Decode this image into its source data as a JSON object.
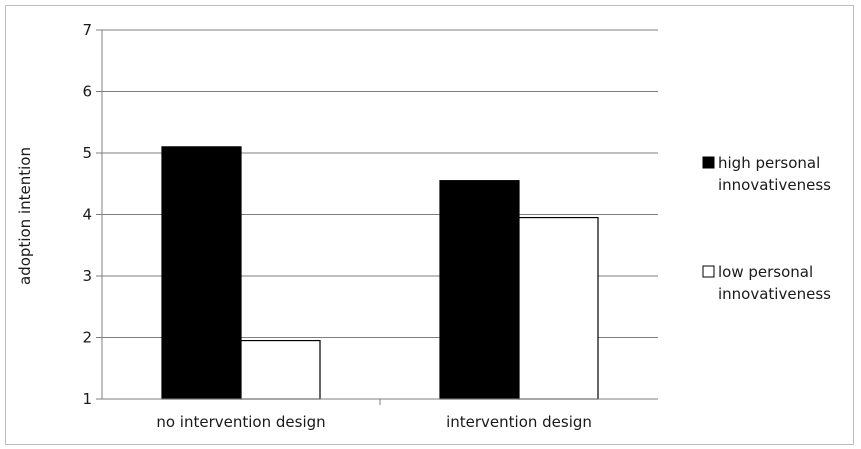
{
  "chart_data": {
    "type": "bar",
    "title": "",
    "xlabel": "",
    "ylabel": "adoption intention",
    "ylim": [
      1,
      7
    ],
    "yticks": [
      1,
      2,
      3,
      4,
      5,
      6,
      7
    ],
    "grid": true,
    "legend_position": "right",
    "categories": [
      "no intervention design",
      "intervention design"
    ],
    "series": [
      {
        "name": "high personal innovativeness",
        "color": "#000000",
        "values": [
          5.1,
          4.55
        ]
      },
      {
        "name": "low personal innovativeness",
        "color": "#ffffff",
        "values": [
          1.95,
          3.95
        ]
      }
    ],
    "legend_lines": [
      [
        "high personal",
        "innovativeness"
      ],
      [
        "low personal",
        "innovativeness"
      ]
    ]
  }
}
